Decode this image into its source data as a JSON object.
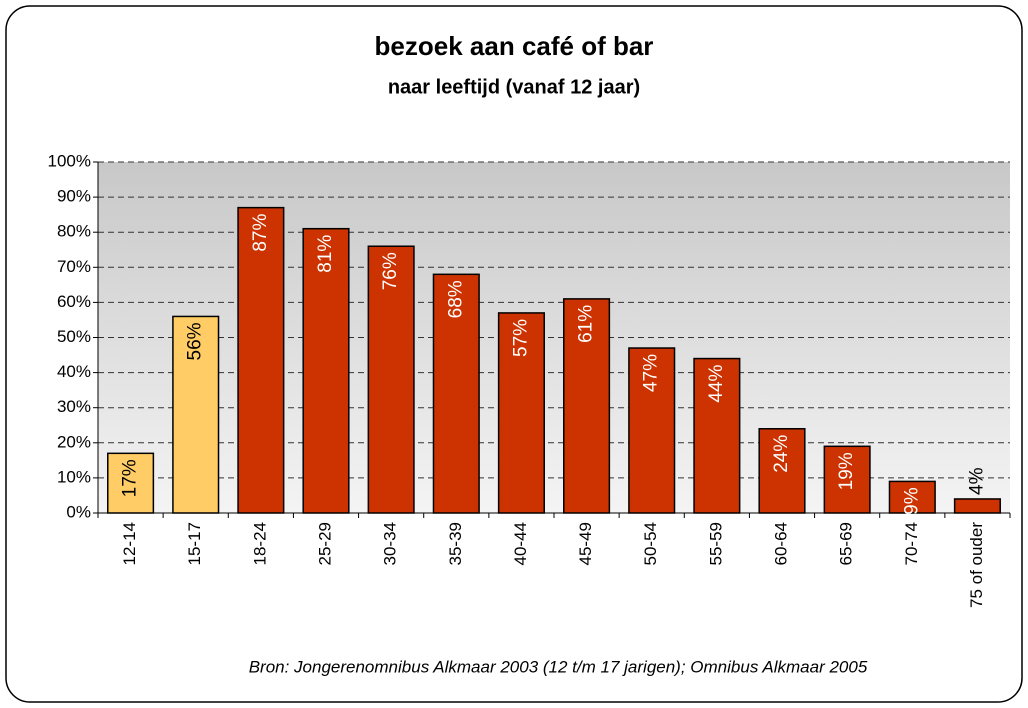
{
  "chart_data": {
    "type": "bar",
    "title": "bezoek aan café of bar",
    "subtitle": "naar leeftijd (vanaf 12 jaar)",
    "source": "Bron: Jongerenomnibus Alkmaar 2003 (12 t/m 17 jarigen); Omnibus Alkmaar 2005",
    "categories": [
      "12-14",
      "15-17",
      "18-24",
      "25-29",
      "30-34",
      "35-39",
      "40-44",
      "45-49",
      "50-54",
      "55-59",
      "60-64",
      "65-69",
      "70-74",
      "75 of ouder"
    ],
    "values": [
      17,
      56,
      87,
      81,
      76,
      68,
      57,
      61,
      47,
      44,
      24,
      19,
      9,
      4
    ],
    "value_labels": [
      "17%",
      "56%",
      "87%",
      "81%",
      "76%",
      "68%",
      "57%",
      "61%",
      "47%",
      "44%",
      "24%",
      "19%",
      "9%",
      "4%"
    ],
    "colors": [
      "#ffcc66",
      "#ffcc66",
      "#cc3300",
      "#cc3300",
      "#cc3300",
      "#cc3300",
      "#cc3300",
      "#cc3300",
      "#cc3300",
      "#cc3300",
      "#cc3300",
      "#cc3300",
      "#cc3300",
      "#cc3300"
    ],
    "ylim": [
      0,
      100
    ],
    "yticks": [
      {
        "value": 0,
        "label": "0%"
      },
      {
        "value": 10,
        "label": "10%"
      },
      {
        "value": 20,
        "label": "20%"
      },
      {
        "value": 30,
        "label": "30%"
      },
      {
        "value": 40,
        "label": "40%"
      },
      {
        "value": 50,
        "label": "50%"
      },
      {
        "value": 60,
        "label": "60%"
      },
      {
        "value": 70,
        "label": "70%"
      },
      {
        "value": 80,
        "label": "80%"
      },
      {
        "value": 90,
        "label": "90%"
      },
      {
        "value": 100,
        "label": "100%"
      }
    ],
    "grid": true
  }
}
